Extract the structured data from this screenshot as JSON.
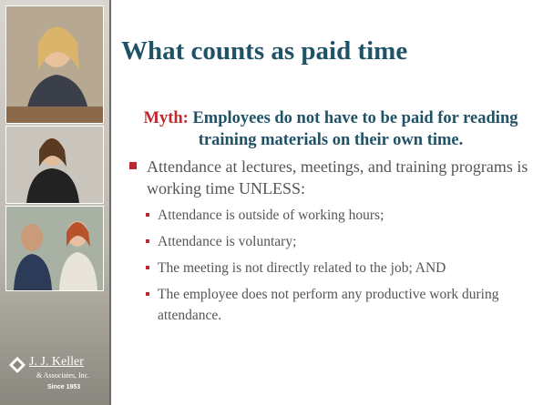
{
  "slide": {
    "title": "What counts as paid time",
    "myth": {
      "label": "Myth:",
      "text": "Employees do not have to be paid for reading training materials on their own time."
    },
    "bullets": [
      {
        "text": "Attendance at lectures, meetings, and training programs is working time UNLESS:",
        "sub": [
          "Attendance is outside of working hours;",
          "Attendance is voluntary;",
          "The meeting is not directly related to the job; AND",
          "The employee does not perform any productive work during attendance."
        ]
      }
    ],
    "logo": {
      "name": "J. J. Keller",
      "company": "& Associates, Inc.",
      "since": "Since 1953"
    }
  }
}
